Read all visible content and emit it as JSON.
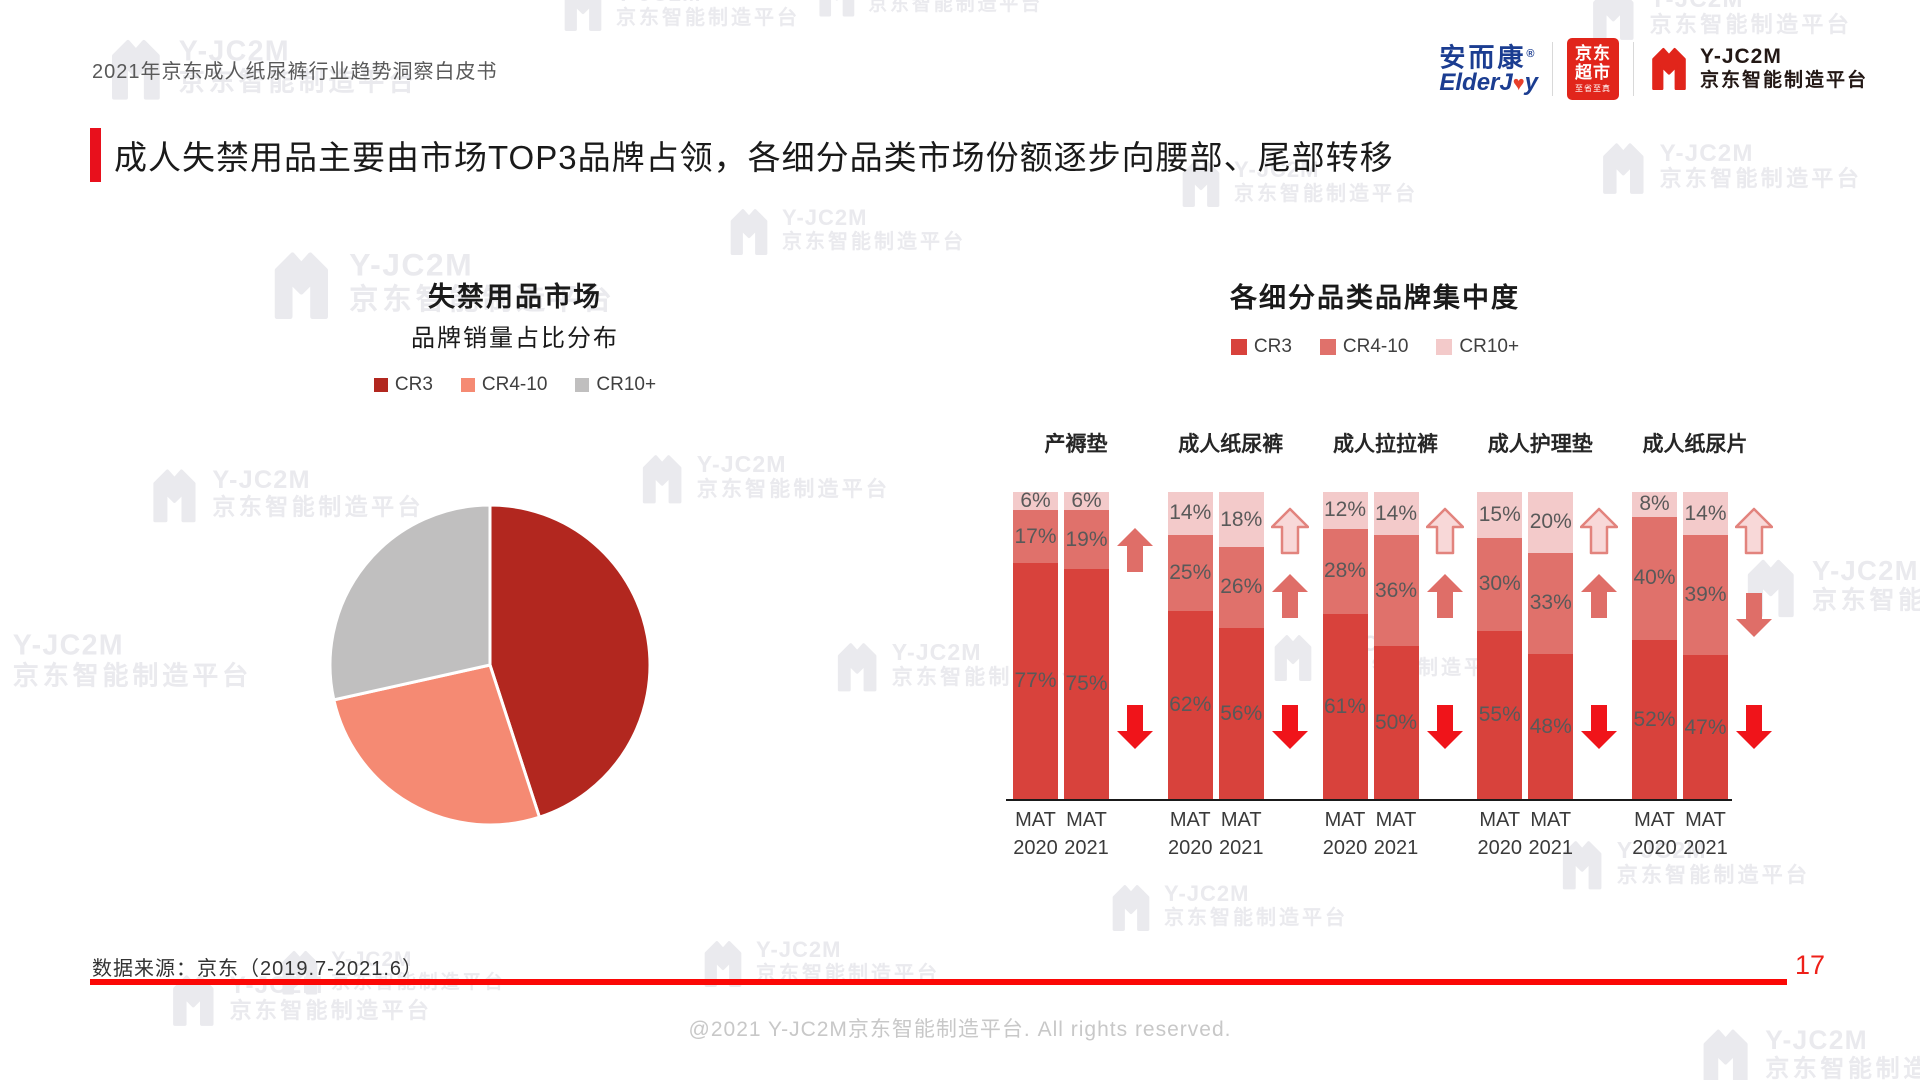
{
  "header": {
    "doc_title": "2021年京东成人纸尿裤行业趋势洞察白皮书",
    "logos": {
      "elderjoy": {
        "cn": "安而康",
        "reg": "®",
        "en_pre": "ElderJ",
        "en_heart": "♥",
        "en_post": "y"
      },
      "jd_supermarket": {
        "line1": "京东",
        "line2": "超市",
        "tagline": "至省至真"
      },
      "jc2m": {
        "name": "Y-JC2M",
        "subtitle": "京东智能制造平台"
      }
    }
  },
  "page_title": "成人失禁用品主要由市场TOP3品牌占领，各细分品类市场份额逐步向腰部、尾部转移",
  "watermark": {
    "line1": "Y-JC2M",
    "line2": "京东智能制造平台"
  },
  "footer": {
    "source": "数据来源：京东（2019.7-2021.6）",
    "page_number": "17",
    "copyright": "@2021 Y-JC2M京东智能制造平台. All rights reserved."
  },
  "chart_data": [
    {
      "type": "pie",
      "title": "失禁用品市场",
      "subtitle": "品牌销量占比分布",
      "labels": [
        "CR3",
        "CR4-10",
        "CR10+"
      ],
      "values_pct": [
        45,
        26.5,
        28.5
      ],
      "values_estimated": true,
      "colors": [
        "#b2271f",
        "#f58a73",
        "#c0bfbf"
      ],
      "legend_position": "top"
    },
    {
      "type": "bar",
      "stacked": true,
      "title": "各细分品类品牌集中度",
      "unit": "%",
      "legend": [
        "CR3",
        "CR4-10",
        "CR10+"
      ],
      "colors": {
        "CR3": "#d8423c",
        "CR4-10": "#e0716b",
        "CR10+": "#f3caca"
      },
      "arrow_colors": {
        "strong": "#f0141a",
        "mid": "#df6e68",
        "pale_fill": "#f8d8d8",
        "pale_stroke": "#e2837d"
      },
      "series_order_bottom_to_top": [
        "CR3",
        "CR4-10",
        "CR10+"
      ],
      "categories": [
        "产褥垫",
        "成人纸尿裤",
        "成人拉拉裤",
        "成人护理垫",
        "成人纸尿片"
      ],
      "ylim": [
        0,
        100
      ],
      "groups": [
        {
          "category": "产褥垫",
          "bars": [
            {
              "x_label_line1": "MAT",
              "x_label_line2": "2020",
              "values": {
                "CR3": 77,
                "CR4-10": 17,
                "CR10+": 6
              }
            },
            {
              "x_label_line1": "MAT",
              "x_label_line2": "2021",
              "values": {
                "CR3": 75,
                "CR4-10": 19,
                "CR10+": 6
              }
            }
          ],
          "trend_arrows": [
            {
              "series": "CR4-10",
              "direction": "up"
            },
            {
              "series": "CR3",
              "direction": "down"
            }
          ]
        },
        {
          "category": "成人纸尿裤",
          "bars": [
            {
              "x_label_line1": "MAT",
              "x_label_line2": "2020",
              "values": {
                "CR3": 62,
                "CR4-10": 25,
                "CR10+": 14
              }
            },
            {
              "x_label_line1": "MAT",
              "x_label_line2": "2021",
              "values": {
                "CR3": 56,
                "CR4-10": 26,
                "CR10+": 18
              }
            }
          ],
          "trend_arrows": [
            {
              "series": "CR10+",
              "direction": "up"
            },
            {
              "series": "CR4-10",
              "direction": "up"
            },
            {
              "series": "CR3",
              "direction": "down"
            }
          ]
        },
        {
          "category": "成人拉拉裤",
          "bars": [
            {
              "x_label_line1": "MAT",
              "x_label_line2": "2020",
              "values": {
                "CR3": 61,
                "CR4-10": 28,
                "CR10+": 12
              }
            },
            {
              "x_label_line1": "MAT",
              "x_label_line2": "2021",
              "values": {
                "CR3": 50,
                "CR4-10": 36,
                "CR10+": 14
              }
            }
          ],
          "trend_arrows": [
            {
              "series": "CR10+",
              "direction": "up"
            },
            {
              "series": "CR4-10",
              "direction": "up"
            },
            {
              "series": "CR3",
              "direction": "down"
            }
          ]
        },
        {
          "category": "成人护理垫",
          "bars": [
            {
              "x_label_line1": "MAT",
              "x_label_line2": "2020",
              "values": {
                "CR3": 55,
                "CR4-10": 30,
                "CR10+": 15
              }
            },
            {
              "x_label_line1": "MAT",
              "x_label_line2": "2021",
              "values": {
                "CR3": 48,
                "CR4-10": 33,
                "CR10+": 20
              }
            }
          ],
          "trend_arrows": [
            {
              "series": "CR10+",
              "direction": "up"
            },
            {
              "series": "CR4-10",
              "direction": "up"
            },
            {
              "series": "CR3",
              "direction": "down"
            }
          ]
        },
        {
          "category": "成人纸尿片",
          "bars": [
            {
              "x_label_line1": "MAT",
              "x_label_line2": "2020",
              "values": {
                "CR3": 52,
                "CR4-10": 40,
                "CR10+": 8
              }
            },
            {
              "x_label_line1": "MAT",
              "x_label_line2": "2021",
              "values": {
                "CR3": 47,
                "CR4-10": 39,
                "CR10+": 14
              }
            }
          ],
          "trend_arrows": [
            {
              "series": "CR10+",
              "direction": "up"
            },
            {
              "series": "CR4-10",
              "direction": "down"
            },
            {
              "series": "CR3",
              "direction": "down"
            }
          ]
        }
      ]
    }
  ],
  "accent_colors": {
    "title_bar": "#e8101c",
    "footer_line": "#fb0806",
    "jd_red": "#e1251b",
    "elderjoy_blue": "#1b3d91"
  }
}
